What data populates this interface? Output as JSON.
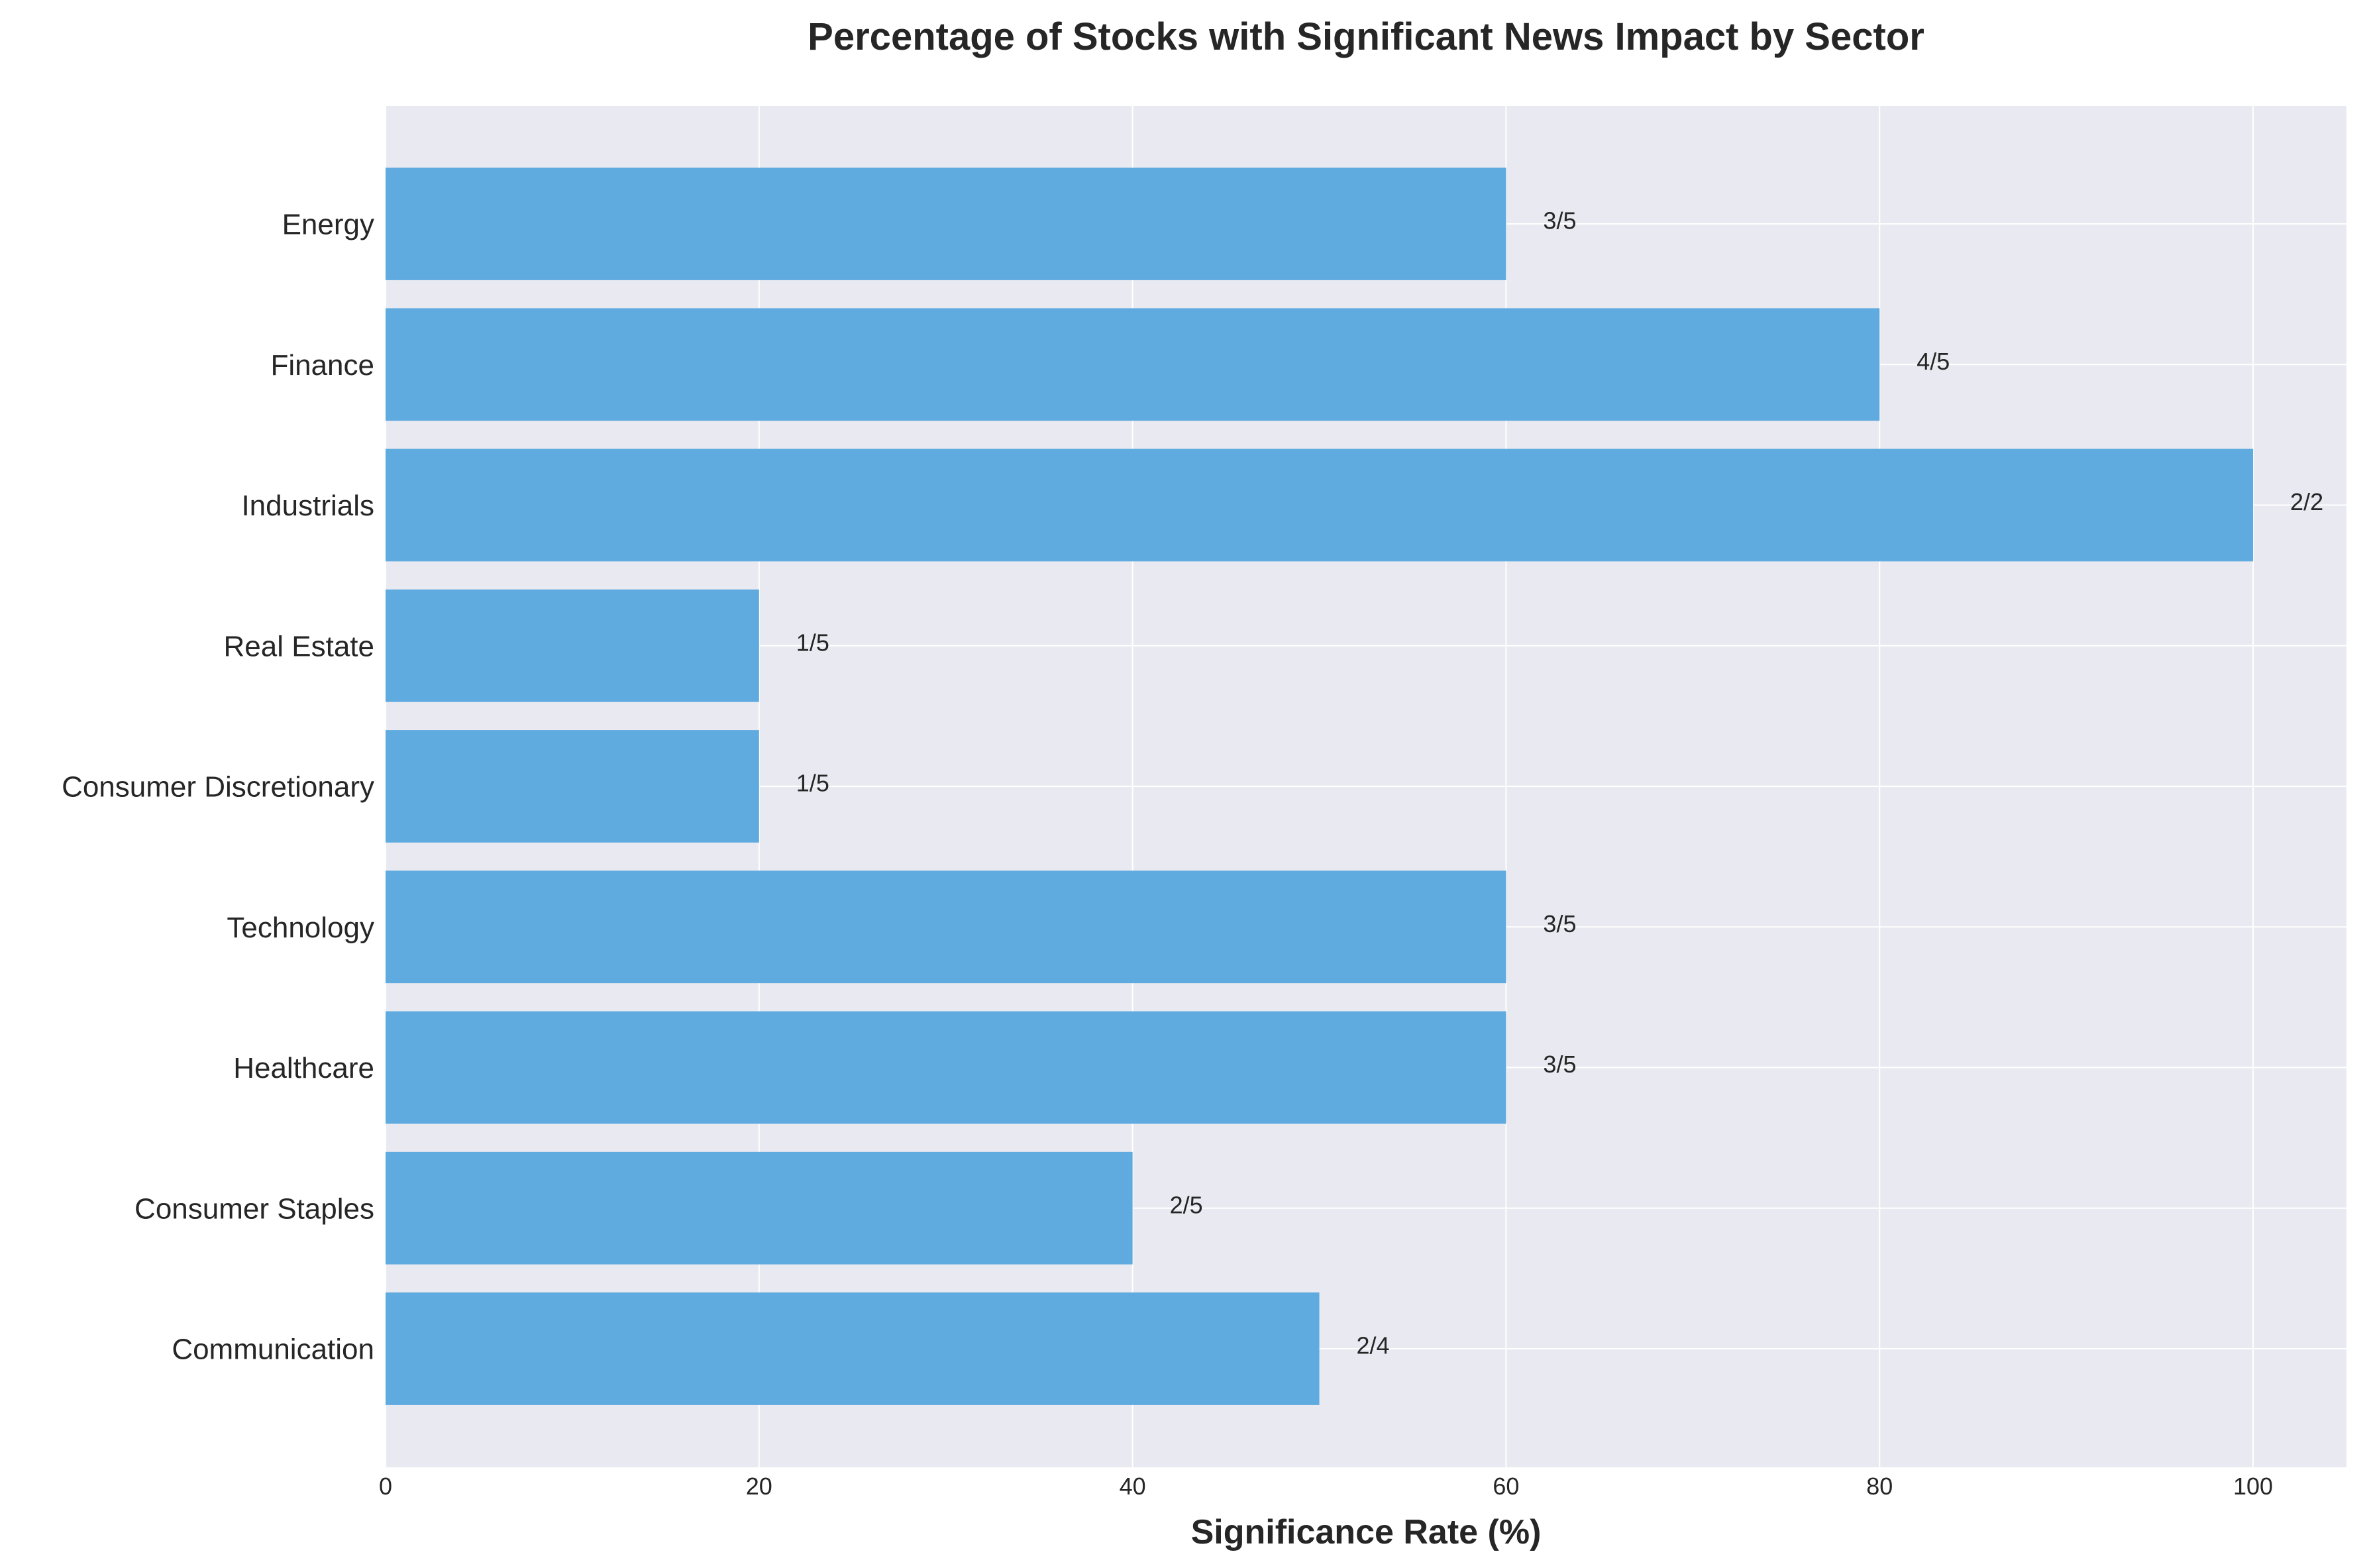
{
  "colors": {
    "bar": "#5aa7de",
    "plot_bg": "#e9e9f1",
    "grid": "#ffffff",
    "text": "#262626"
  },
  "chart_data": {
    "type": "bar",
    "orientation": "horizontal",
    "title": "Percentage of Stocks with Significant News Impact by Sector",
    "xlabel": "Significance Rate (%)",
    "ylabel": "",
    "xlim": [
      0,
      105
    ],
    "x_ticks": [
      0,
      20,
      40,
      60,
      80,
      100
    ],
    "grid": true,
    "categories": [
      "Energy",
      "Finance",
      "Industrials",
      "Real Estate",
      "Consumer Discretionary",
      "Technology",
      "Healthcare",
      "Consumer Staples",
      "Communication"
    ],
    "values": [
      60,
      80,
      100,
      20,
      20,
      60,
      60,
      40,
      50
    ],
    "data_labels": [
      "3/5",
      "4/5",
      "2/2",
      "1/5",
      "1/5",
      "3/5",
      "3/5",
      "2/5",
      "2/4"
    ]
  }
}
